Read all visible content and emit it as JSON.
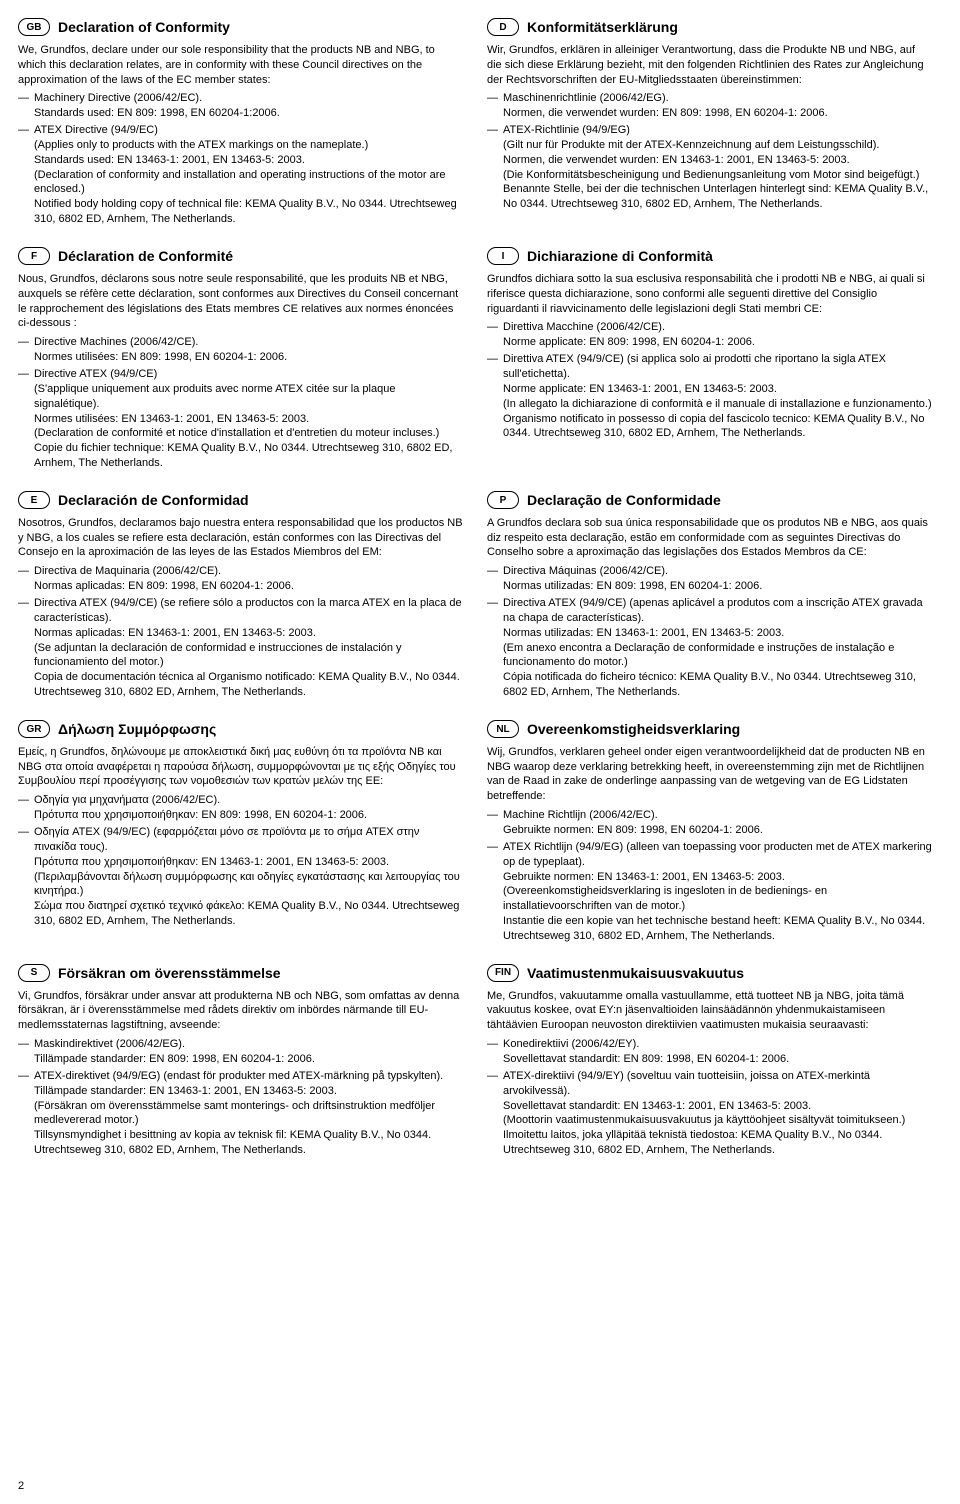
{
  "page_number": "2",
  "sections": [
    {
      "code": "GB",
      "title": "Declaration of Conformity",
      "intro": "We, Grundfos, declare under our sole responsibility that the products NB and NBG, to which this declaration relates, are in conformity with these Council directives on the approximation of the laws of the EC member states:",
      "items": [
        [
          "Machinery Directive (2006/42/EC).",
          "Standards used: EN 809: 1998, EN 60204-1:2006."
        ],
        [
          "ATEX Directive (94/9/EC)",
          "(Applies only to products with the ATEX markings on the nameplate.)",
          "Standards used: EN 13463-1: 2001, EN 13463-5: 2003.",
          "(Declaration of conformity and installation and operating instructions of the motor are enclosed.)",
          "Notified body holding copy of technical file: KEMA Quality B.V., No 0344. Utrechtseweg 310, 6802 ED, Arnhem, The Netherlands."
        ]
      ]
    },
    {
      "code": "D",
      "title": "Konformitätserklärung",
      "intro": "Wir, Grundfos, erklären in alleiniger Verantwortung, dass die Produkte NB und NBG, auf die sich diese Erklärung bezieht, mit den folgenden Richtlinien des Rates zur Angleichung der Rechtsvorschriften der EU-Mitgliedsstaaten übereinstimmen:",
      "items": [
        [
          "Maschinenrichtlinie (2006/42/EG).",
          "Normen, die verwendet wurden: EN 809: 1998, EN 60204-1: 2006."
        ],
        [
          "ATEX-Richtlinie (94/9/EG)",
          "(Gilt nur für Produkte mit der ATEX-Kennzeichnung auf dem Leistungsschild).",
          "Normen, die verwendet wurden: EN 13463-1: 2001, EN 13463-5: 2003.",
          "(Die Konformitätsbescheinigung und Bedienungsanleitung vom Motor sind beigefügt.)",
          "Benannte Stelle, bei der die technischen Unterlagen hinterlegt sind: KEMA Quality B.V., No 0344. Utrechtseweg 310, 6802 ED, Arnhem, The Netherlands."
        ]
      ]
    },
    {
      "code": "F",
      "title": "Déclaration de Conformité",
      "intro": "Nous, Grundfos, déclarons sous notre seule responsabilité, que les produits NB et NBG, auxquels se réfère cette déclaration, sont conformes aux Directives du Conseil concernant le rapprochement des législations des Etats membres CE relatives aux normes énoncées ci-dessous :",
      "items": [
        [
          "Directive Machines (2006/42/CE).",
          "Normes utilisées: EN 809: 1998, EN 60204-1: 2006."
        ],
        [
          "Directive ATEX (94/9/CE)",
          "(S'applique uniquement aux produits avec norme ATEX citée sur la plaque signalétique).",
          "Normes utilisées: EN 13463-1: 2001, EN 13463-5: 2003.",
          "(Declaration de conformité et notice d'installation et d'entretien du moteur incluses.)",
          "Copie du fichier technique: KEMA Quality B.V., No 0344. Utrechtseweg 310, 6802 ED, Arnhem, The Netherlands."
        ]
      ]
    },
    {
      "code": "I",
      "title": "Dichiarazione di Conformità",
      "intro": "Grundfos dichiara sotto la sua esclusiva responsabilità che i prodotti NB e NBG, ai quali si riferisce questa dichiarazione, sono conformi alle seguenti direttive del Consiglio riguardanti il riavvicinamento delle legislazioni degli Stati membri CE:",
      "items": [
        [
          "Direttiva Macchine (2006/42/CE).",
          "Norme applicate: EN 809: 1998, EN 60204-1: 2006."
        ],
        [
          "Direttiva ATEX (94/9/CE) (si applica solo ai prodotti che riportano la sigla ATEX sull'etichetta).",
          "Norme applicate: EN 13463-1: 2001, EN 13463-5: 2003.",
          "(In allegato la dichiarazione di conformità e il manuale di installazione e funzionamento.)",
          "Organismo notificato in possesso di copia del fascicolo tecnico: KEMA Quality B.V., No 0344. Utrechtseweg 310, 6802 ED, Arnhem, The Netherlands."
        ]
      ]
    },
    {
      "code": "E",
      "title": "Declaración de Conformidad",
      "intro": "Nosotros, Grundfos, declaramos bajo nuestra entera responsabilidad que los productos NB y NBG, a los cuales se refiere esta declaración, están conformes con las Directivas del Consejo en la aproximación de las leyes de las Estados Miembros del EM:",
      "items": [
        [
          "Directiva de Maquinaria (2006/42/CE).",
          "Normas aplicadas: EN 809: 1998, EN 60204-1: 2006."
        ],
        [
          "Directiva ATEX (94/9/CE) (se refiere sólo a productos con la marca ATEX en la placa de características).",
          "Normas aplicadas: EN 13463-1: 2001, EN 13463-5: 2003.",
          "(Se adjuntan la declaración de conformidad e instrucciones de instalación y funcionamiento del motor.)",
          "Copia de documentación técnica al Organismo notificado: KEMA Quality B.V., No 0344. Utrechtseweg 310, 6802 ED, Arnhem, The Netherlands."
        ]
      ]
    },
    {
      "code": "P",
      "title": "Declaração de Conformidade",
      "intro": "A Grundfos declara sob sua única responsabilidade que os produtos NB e NBG, aos quais diz respeito esta declaração, estão em conformidade com as seguintes Directivas do Conselho sobre a aproximação das legislações dos Estados Membros da CE:",
      "items": [
        [
          "Directiva Máquinas (2006/42/CE).",
          "Normas utilizadas: EN 809: 1998, EN 60204-1: 2006."
        ],
        [
          "Directiva ATEX (94/9/CE) (apenas aplicável a produtos com a inscrição ATEX gravada na chapa de características).",
          "Normas utilizadas: EN 13463-1: 2001, EN 13463-5: 2003.",
          "(Em anexo encontra a Declaração de conformidade e instruções de instalação e funcionamento do motor.)",
          "Cópia notificada do ficheiro técnico: KEMA Quality B.V., No 0344. Utrechtseweg 310, 6802 ED, Arnhem, The Netherlands."
        ]
      ]
    },
    {
      "code": "GR",
      "title": "Δήλωση Συμμόρφωσης",
      "intro": "Εμείς, η Grundfos, δηλώνουμε με αποκλειστικά δική μας ευθύνη ότι τα προϊόντα NB και NBG στα οποία αναφέρεται η παρούσα δήλωση, συμμορφώνονται με τις εξής Οδηγίες του Συμβουλίου περί προσέγγισης των νομοθεσιών των κρατών μελών της ΕΕ:",
      "items": [
        [
          "Οδηγία για μηχανήματα (2006/42/EC).",
          "Πρότυπα που χρησιμοποιήθηκαν: EN 809: 1998, EN 60204-1: 2006."
        ],
        [
          "Οδηγία ATEX (94/9/EC) (εφαρμόζεται μόνο σε προϊόντα με το σήμα ATEX στην πινακίδα τους).",
          "Πρότυπα που χρησιμοποιήθηκαν: EN 13463-1: 2001, EN 13463-5: 2003.",
          "(Περιλαμβάνονται δήλωση συμμόρφωσης και οδηγίες εγκατάστασης και λειτουργίας του κινητήρα.)",
          "Σώμα που διατηρεί σχετικό τεχνικό φάκελο: KEMA Quality B.V., No 0344. Utrechtseweg 310, 6802 ED, Arnhem, The Netherlands."
        ]
      ]
    },
    {
      "code": "NL",
      "title": "Overeenkomstigheidsverklaring",
      "intro": "Wij, Grundfos, verklaren geheel onder eigen verantwoordelijkheid dat de producten NB en NBG waarop deze verklaring betrekking heeft, in overeenstemming zijn met de Richtlijnen van de Raad in zake de onderlinge aanpassing van de wetgeving van de EG Lidstaten betreffende:",
      "items": [
        [
          "Machine Richtlijn (2006/42/EC).",
          "Gebruikte normen: EN 809: 1998, EN 60204-1: 2006."
        ],
        [
          "ATEX Richtlijn (94/9/EG) (alleen van toepassing voor producten met de ATEX markering op de typeplaat).",
          "Gebruikte normen: EN 13463-1: 2001, EN 13463-5: 2003.",
          "(Overeenkomstigheidsverklaring is ingesloten in de bedienings- en installatievoorschriften van de motor.)",
          "Instantie die een kopie van het technische bestand heeft: KEMA Quality B.V., No 0344. Utrechtseweg 310, 6802 ED, Arnhem, The Netherlands."
        ]
      ]
    },
    {
      "code": "S",
      "title": "Försäkran om överensstämmelse",
      "intro": "Vi, Grundfos, försäkrar under ansvar att produkterna NB och NBG, som omfattas av denna försäkran, är i överensstämmelse med rådets direktiv om inbördes närmande till EU-medlemsstaternas lagstiftning, avseende:",
      "items": [
        [
          "Maskindirektivet (2006/42/EG).",
          "Tillämpade standarder: EN 809: 1998, EN 60204-1: 2006."
        ],
        [
          "ATEX-direktivet (94/9/EG) (endast för produkter med ATEX-märkning på typskylten).",
          "Tillämpade standarder: EN 13463-1: 2001, EN 13463-5: 2003.",
          "(Försäkran om överensstämmelse samt monterings- och driftsinstruktion medföljer medlevererad motor.)",
          "Tillsynsmyndighet i besittning av kopia av teknisk fil: KEMA Quality B.V., No 0344. Utrechtseweg 310, 6802 ED, Arnhem, The Netherlands."
        ]
      ]
    },
    {
      "code": "FIN",
      "title": "Vaatimustenmukaisuusvakuutus",
      "intro": "Me, Grundfos, vakuutamme omalla vastuullamme, että tuotteet NB ja NBG, joita tämä vakuutus koskee, ovat EY:n jäsenvaltioiden lainsäädännön yhdenmukaistamiseen tähtäävien Euroopan neuvoston direktiivien vaatimusten mukaisia seuraavasti:",
      "items": [
        [
          "Konedirektiivi (2006/42/EY).",
          "Sovellettavat standardit: EN 809: 1998, EN 60204-1: 2006."
        ],
        [
          "ATEX-direktiivi (94/9/EY) (soveltuu vain tuotteisiin, joissa on ATEX-merkintä arvokilvessä).",
          "Sovellettavat standardit: EN 13463-1: 2001, EN 13463-5: 2003.",
          "(Moottorin vaatimustenmukaisuusvakuutus ja käyttöohjeet sisältyvät toimitukseen.)",
          "Ilmoitettu laitos, joka ylläpitää teknistä tiedostoa: KEMA Quality B.V., No 0344. Utrechtseweg 310, 6802 ED, Arnhem, The Netherlands."
        ]
      ]
    }
  ]
}
